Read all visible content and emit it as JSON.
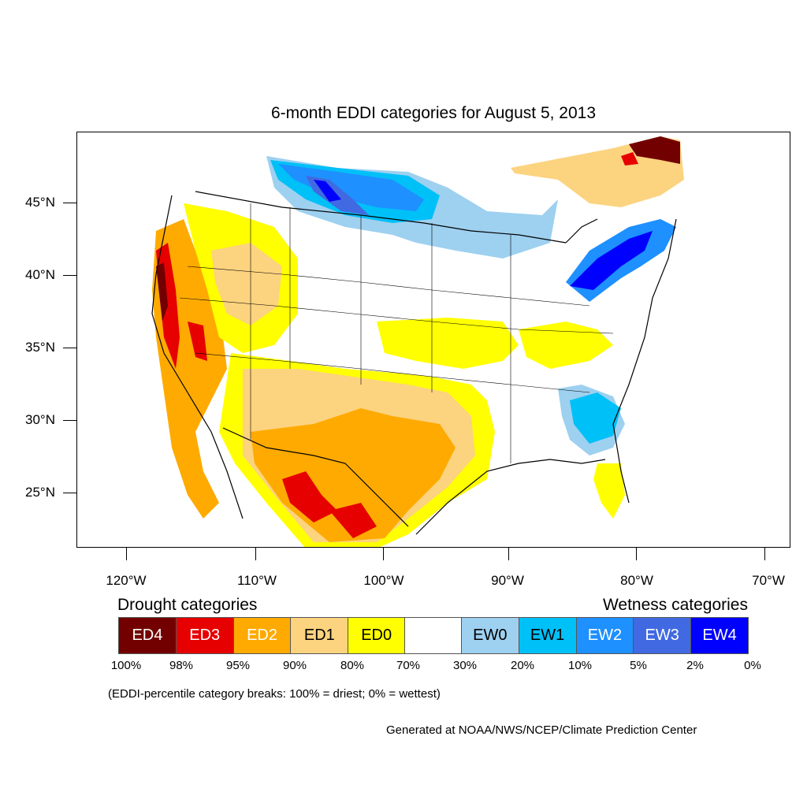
{
  "title": "6-month EDDI categories for August 5, 2013",
  "lat_labels": [
    "45°N",
    "40°N",
    "35°N",
    "30°N",
    "25°N"
  ],
  "lon_labels": [
    "120°W",
    "110°W",
    "100°W",
    "90°W",
    "80°W",
    "70°W"
  ],
  "legend": {
    "drought_heading": "Drought categories",
    "wetness_heading": "Wetness categories",
    "categories": [
      {
        "label": "ED4",
        "color": "#730000",
        "text_color": "#ffffff"
      },
      {
        "label": "ED3",
        "color": "#e60000",
        "text_color": "#ffffff"
      },
      {
        "label": "ED2",
        "color": "#ffaa00",
        "text_color": "#ffffff"
      },
      {
        "label": "ED1",
        "color": "#fcd37f",
        "text_color": "#000000"
      },
      {
        "label": "ED0",
        "color": "#ffff00",
        "text_color": "#000000"
      },
      {
        "label": "",
        "color": "#ffffff",
        "text_color": "#000000"
      },
      {
        "label": "EW0",
        "color": "#9ed0f0",
        "text_color": "#000000"
      },
      {
        "label": "EW1",
        "color": "#00c0f8",
        "text_color": "#000000"
      },
      {
        "label": "EW2",
        "color": "#1e90ff",
        "text_color": "#ffffff"
      },
      {
        "label": "EW3",
        "color": "#4169e1",
        "text_color": "#ffffff"
      },
      {
        "label": "EW4",
        "color": "#0000ff",
        "text_color": "#ffffff"
      }
    ],
    "percentiles": [
      "100%",
      "98%",
      "95%",
      "90%",
      "80%",
      "70%",
      "30%",
      "20%",
      "10%",
      "5%",
      "2%",
      "0%"
    ]
  },
  "note": "(EDDI-percentile category breaks: 100% = driest; 0% = wettest)",
  "credit": "Generated at NOAA/NWS/NCEP/Climate Prediction Center"
}
